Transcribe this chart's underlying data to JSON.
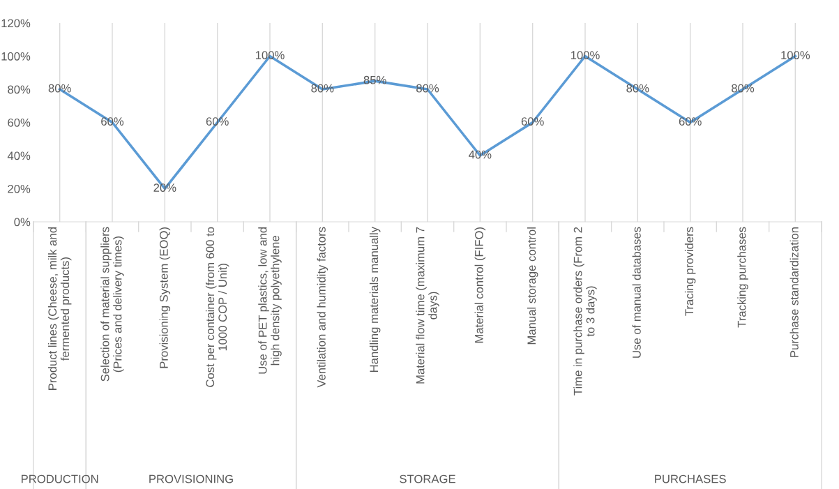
{
  "chart_data": {
    "type": "line",
    "categories": [
      "Product lines (Cheese, milk and fermented products)",
      "Selection of material suppliers (Prices and delivery times)",
      "Provisioning System (EOQ)",
      "Cost per container (from 600 to 1000 COP / Unit)",
      "Use of PET plastics, low and high density polyethylene",
      "Ventilation and humidity factors",
      "Handling materials manually",
      "Material flow time (maximum 7 days)",
      "Material control (FIFO)",
      "Manual storage control",
      "Time in purchase orders (From 2 to 3 days)",
      "Use of manual databases",
      "Tracing providers",
      "Tracking purchases",
      "Purchase standardization"
    ],
    "series": [
      {
        "color": "#5b9bd5",
        "values": [
          80,
          60,
          20,
          60,
          100,
          80,
          85,
          80,
          40,
          60,
          100,
          80,
          60,
          80,
          100
        ],
        "value_labels": [
          "80%",
          "60%",
          "20%",
          "60%",
          "100%",
          "80%",
          "85%",
          "80%",
          "40%",
          "60%",
          "100%",
          "80%",
          "60%",
          "80%",
          "100%"
        ]
      }
    ],
    "ylim": [
      0,
      120
    ],
    "yticks": [
      {
        "value": 0,
        "label": "0%"
      },
      {
        "value": 20,
        "label": "20%"
      },
      {
        "value": 40,
        "label": "40%"
      },
      {
        "value": 60,
        "label": "60%"
      },
      {
        "value": 80,
        "label": "80%"
      },
      {
        "value": 100,
        "label": "100%"
      },
      {
        "value": 120,
        "label": "120%"
      }
    ],
    "grid": "x",
    "marker": "none",
    "line_style": "solid",
    "annotations": [
      "PRODUCTION",
      "PROVISIONING",
      "STORAGE",
      "PURCHASES"
    ]
  }
}
